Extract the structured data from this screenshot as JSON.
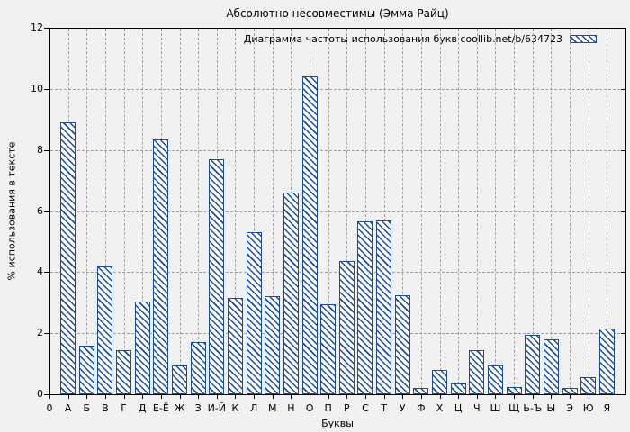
{
  "colors": {
    "bar_outline": "#1a4b9e",
    "bar_fill": "#ffffff",
    "background": "#f1f1f1",
    "grid": "#9f9f9f",
    "axis": "#000000"
  },
  "axes": {
    "origin_label": "0"
  },
  "chart_data": {
    "type": "bar",
    "title": "Абсолютно несовместимы (Эмма Райц)",
    "legend": [
      "Диаграмма частоты использования букв coollib.net/b/634723"
    ],
    "legend_position": "top-right",
    "xlabel": "Буквы",
    "ylabel": "% использования в тексте",
    "ylim": [
      0,
      12
    ],
    "yticks": [
      0,
      2,
      4,
      6,
      8,
      10,
      12
    ],
    "grid": true,
    "hatch_style": "diagonal",
    "categories": [
      "А",
      "Б",
      "В",
      "Г",
      "Д",
      "Е-Ё",
      "Ж",
      "З",
      "И-Й",
      "К",
      "Л",
      "М",
      "Н",
      "О",
      "П",
      "Р",
      "С",
      "Т",
      "У",
      "Ф",
      "Х",
      "Ц",
      "Ч",
      "Ш",
      "Щ",
      "Ь-Ъ",
      "Ы",
      "Э",
      "Ю",
      "Я"
    ],
    "values": [
      8.9,
      1.6,
      4.2,
      1.45,
      3.05,
      8.35,
      0.95,
      1.7,
      7.7,
      3.15,
      5.3,
      3.2,
      6.6,
      10.4,
      2.95,
      4.35,
      5.65,
      5.7,
      3.25,
      0.2,
      0.8,
      0.35,
      1.45,
      0.95,
      0.25,
      1.95,
      1.8,
      0.2,
      0.55,
      2.15
    ]
  }
}
